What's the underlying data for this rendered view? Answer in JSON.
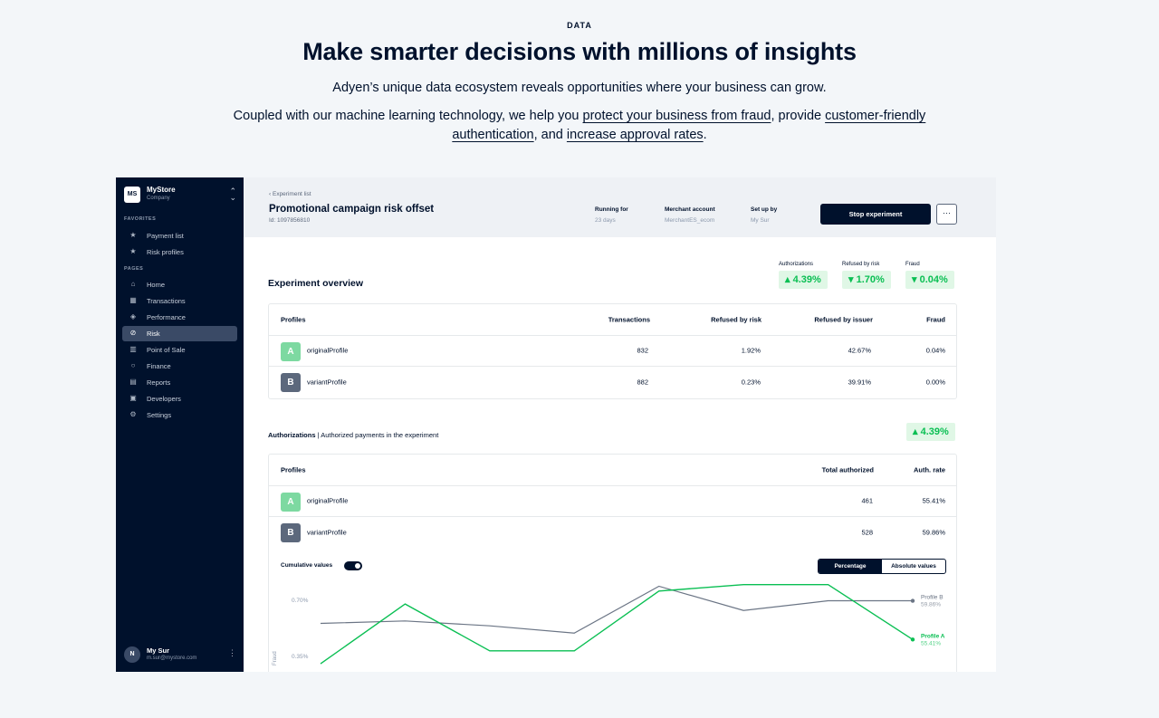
{
  "hero": {
    "eyebrow": "DATA",
    "title": "Make smarter decisions with millions of insights",
    "subtitle": "Adyen’s unique data ecosystem reveals opportunities where your business can grow.",
    "body_prefix": "Coupled with our machine learning technology, we help you ",
    "link_fraud": "protect your business from fraud",
    "body_mid1": ", provide ",
    "link_auth": "customer-friendly authentication",
    "body_mid2": ", and ",
    "link_approval": "increase approval rates",
    "body_suffix": "."
  },
  "sidebar": {
    "store_logo": "MS",
    "store_name": "MyStore",
    "store_type": "Company",
    "favorites_heading": "FAVORITES",
    "favorites": [
      {
        "label": "Payment list",
        "icon": "star-icon"
      },
      {
        "label": "Risk profiles",
        "icon": "star-icon"
      }
    ],
    "pages_heading": "PAGES",
    "pages": [
      {
        "label": "Home",
        "icon": "home-icon"
      },
      {
        "label": "Transactions",
        "icon": "table-icon"
      },
      {
        "label": "Performance",
        "icon": "performance-icon"
      },
      {
        "label": "Risk",
        "icon": "shield-icon",
        "active": true
      },
      {
        "label": "Point of Sale",
        "icon": "store-icon"
      },
      {
        "label": "Finance",
        "icon": "finance-icon"
      },
      {
        "label": "Reports",
        "icon": "document-icon"
      },
      {
        "label": "Developers",
        "icon": "terminal-icon"
      },
      {
        "label": "Settings",
        "icon": "gear-icon"
      }
    ],
    "user_initial": "N",
    "user_name": "My Sur",
    "user_email": "m.sur@mystore.com"
  },
  "topbar": {
    "back_label": "Experiment list",
    "title": "Promotional campaign risk offset",
    "id_label": "Id: 1097856810",
    "meta": [
      {
        "key": "Running for",
        "value": "23 days"
      },
      {
        "key": "Merchant account",
        "value": "MerchantES_ecom"
      },
      {
        "key": "Set up by",
        "value": "My Sur"
      }
    ],
    "stop_label": "Stop experiment",
    "more_label": "···"
  },
  "overview": {
    "title": "Experiment overview",
    "kpis": [
      {
        "label": "Authorizations",
        "value": "▴ 4.39%"
      },
      {
        "label": "Refused by risk",
        "value": "▾ 1.70%"
      },
      {
        "label": "Fraud",
        "value": "▾ 0.04%"
      }
    ],
    "headers": [
      "Profiles",
      "Transactions",
      "Refused by risk",
      "Refused by issuer",
      "Fraud"
    ],
    "rows": [
      {
        "badge": "A",
        "name": "originalProfile",
        "transactions": "832",
        "refused_risk": "1.92%",
        "refused_issuer": "42.67%",
        "fraud": "0.04%"
      },
      {
        "badge": "B",
        "name": "variantProfile",
        "transactions": "882",
        "refused_risk": "0.23%",
        "refused_issuer": "39.91%",
        "fraud": "0.00%"
      }
    ]
  },
  "authorizations": {
    "title": "Authorizations",
    "subtitle": " | Authorized payments in the experiment",
    "kpi": "▴ 4.39%",
    "headers": [
      "Profiles",
      "Total authorized",
      "Auth. rate"
    ],
    "rows": [
      {
        "badge": "A",
        "name": "originalProfile",
        "total": "461",
        "rate": "55.41%"
      },
      {
        "badge": "B",
        "name": "variantProfile",
        "total": "528",
        "rate": "59.86%"
      }
    ],
    "cumulative_label": "Cumulative values",
    "seg_on": "Percentage",
    "seg_off": "Absolute values"
  },
  "colors": {
    "profile_a": "#0abf53",
    "profile_b": "#6b7585",
    "navy": "#00112c"
  },
  "chart_data": {
    "type": "line",
    "ylabel": "Fraud",
    "yticks": [
      "0.70%",
      "0.35%"
    ],
    "ylim": [
      0.25,
      0.85
    ],
    "x": [
      1,
      2,
      3,
      4,
      5,
      6,
      7,
      8
    ],
    "series": [
      {
        "name": "Profile B",
        "end_label": "59.86%",
        "values": [
          0.55,
          0.565,
          0.535,
          0.49,
          0.78,
          0.63,
          0.69,
          0.69
        ]
      },
      {
        "name": "Profile A",
        "end_label": "55.41%",
        "values": [
          0.3,
          0.67,
          0.38,
          0.38,
          0.75,
          0.79,
          0.79,
          0.45
        ]
      }
    ]
  }
}
